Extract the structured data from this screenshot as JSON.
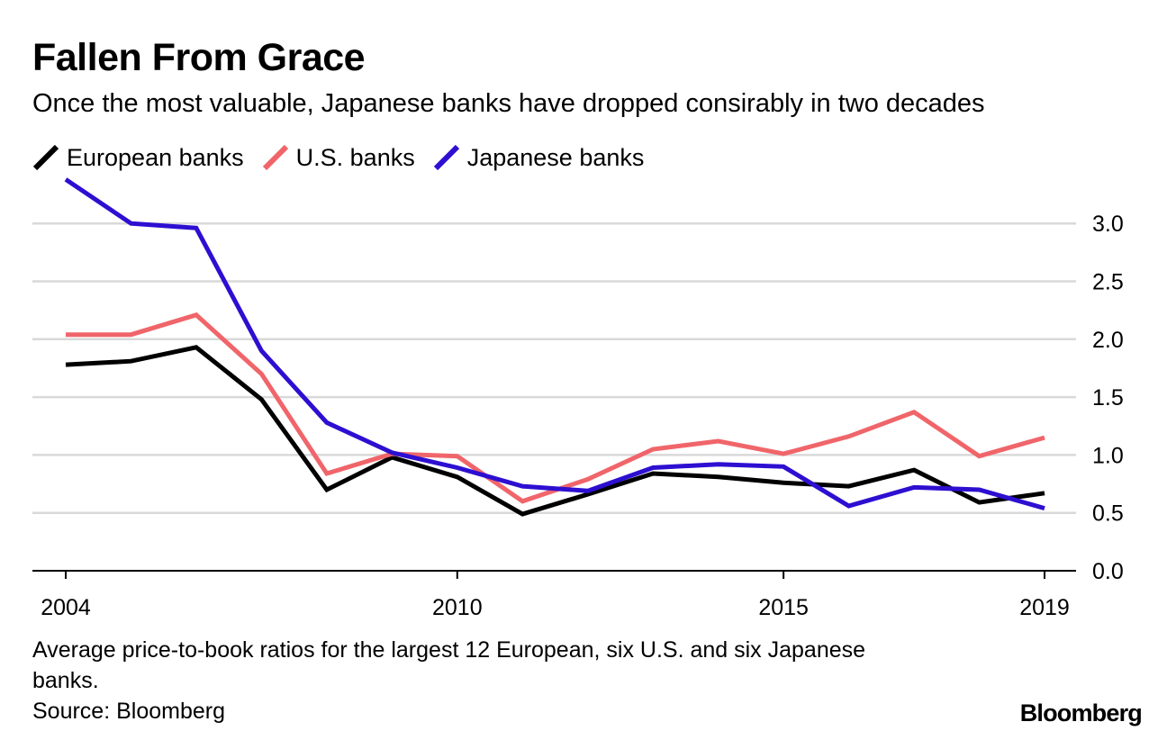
{
  "header": {
    "title": "Fallen From Grace",
    "subtitle": "Once the most valuable, Japanese banks have dropped consirably in two decades"
  },
  "legend": [
    {
      "label": "European banks",
      "color": "#000000"
    },
    {
      "label": "U.S. banks",
      "color": "#f0656a"
    },
    {
      "label": "Japanese banks",
      "color": "#2d0fd1"
    }
  ],
  "footer": {
    "note": "Average price-to-book ratios for the largest 12 European, six U.S. and six Japanese banks.",
    "source": "Source: Bloomberg",
    "brand": "Bloomberg"
  },
  "chart_data": {
    "type": "line",
    "title": "Fallen From Grace",
    "xlabel": "",
    "ylabel": "",
    "x": [
      2004,
      2005,
      2006,
      2007,
      2008,
      2009,
      2010,
      2011,
      2012,
      2013,
      2014,
      2015,
      2016,
      2017,
      2018,
      2019
    ],
    "xlim": [
      2004,
      2019
    ],
    "ylim": [
      0,
      3.4
    ],
    "x_ticks": [
      {
        "value": 2004,
        "label": "2004"
      },
      {
        "value": 2010,
        "label": "2010"
      },
      {
        "value": 2015,
        "label": "2015"
      },
      {
        "value": 2019,
        "label": "2019"
      }
    ],
    "y_ticks": [
      {
        "value": 0,
        "label": "0.0"
      },
      {
        "value": 0.5,
        "label": "0.5"
      },
      {
        "value": 1.0,
        "label": "1.0"
      },
      {
        "value": 1.5,
        "label": "1.5"
      },
      {
        "value": 2.0,
        "label": "2.0"
      },
      {
        "value": 2.5,
        "label": "2.5"
      },
      {
        "value": 3.0,
        "label": "3.0"
      }
    ],
    "grid": true,
    "legend_position": "top-left",
    "series": [
      {
        "name": "European banks",
        "color": "#000000",
        "values": [
          1.78,
          1.81,
          1.93,
          1.48,
          0.7,
          0.98,
          0.81,
          0.49,
          0.66,
          0.84,
          0.81,
          0.76,
          0.73,
          0.87,
          0.59,
          0.67
        ]
      },
      {
        "name": "U.S. banks",
        "color": "#f0656a",
        "values": [
          2.04,
          2.04,
          2.21,
          1.7,
          0.84,
          1.01,
          0.99,
          0.6,
          0.79,
          1.05,
          1.12,
          1.01,
          1.16,
          1.37,
          0.99,
          1.15
        ]
      },
      {
        "name": "Japanese banks",
        "color": "#2d0fd1",
        "values": [
          3.38,
          3.0,
          2.96,
          1.9,
          1.28,
          1.02,
          0.89,
          0.73,
          0.69,
          0.89,
          0.92,
          0.9,
          0.56,
          0.72,
          0.7,
          0.54
        ]
      }
    ]
  }
}
